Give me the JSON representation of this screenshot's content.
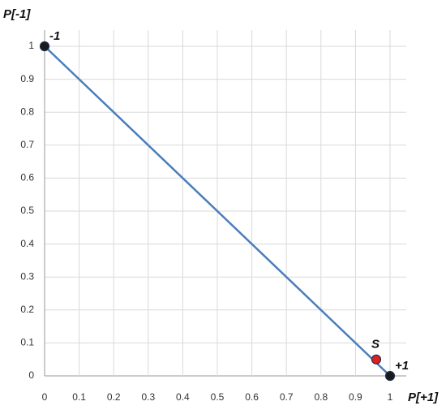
{
  "chart_data": {
    "type": "line",
    "xlabel": "P[+1]",
    "ylabel": "P[-1]",
    "x": [
      0,
      1
    ],
    "series": [
      {
        "color": "#4a7ebb",
        "values": [
          1,
          0
        ]
      }
    ],
    "points": [
      {
        "label": "-1",
        "x": 0,
        "y": 1,
        "color": "#1a1a1a"
      },
      {
        "label": "+1",
        "x": 1,
        "y": 0,
        "color": "#1a1a1a"
      },
      {
        "label": "S",
        "x": 0.96,
        "y": 0.05,
        "color": "#e02020"
      }
    ],
    "xlim": [
      0,
      1
    ],
    "ylim": [
      0,
      1
    ],
    "xticks": [
      0,
      0.1,
      0.2,
      0.3,
      0.4,
      0.5,
      0.6,
      0.7,
      0.8,
      0.9,
      1
    ],
    "yticks": [
      0,
      0.1,
      0.2,
      0.3,
      0.4,
      0.5,
      0.6,
      0.7,
      0.8,
      0.9,
      1
    ],
    "grid": true
  }
}
